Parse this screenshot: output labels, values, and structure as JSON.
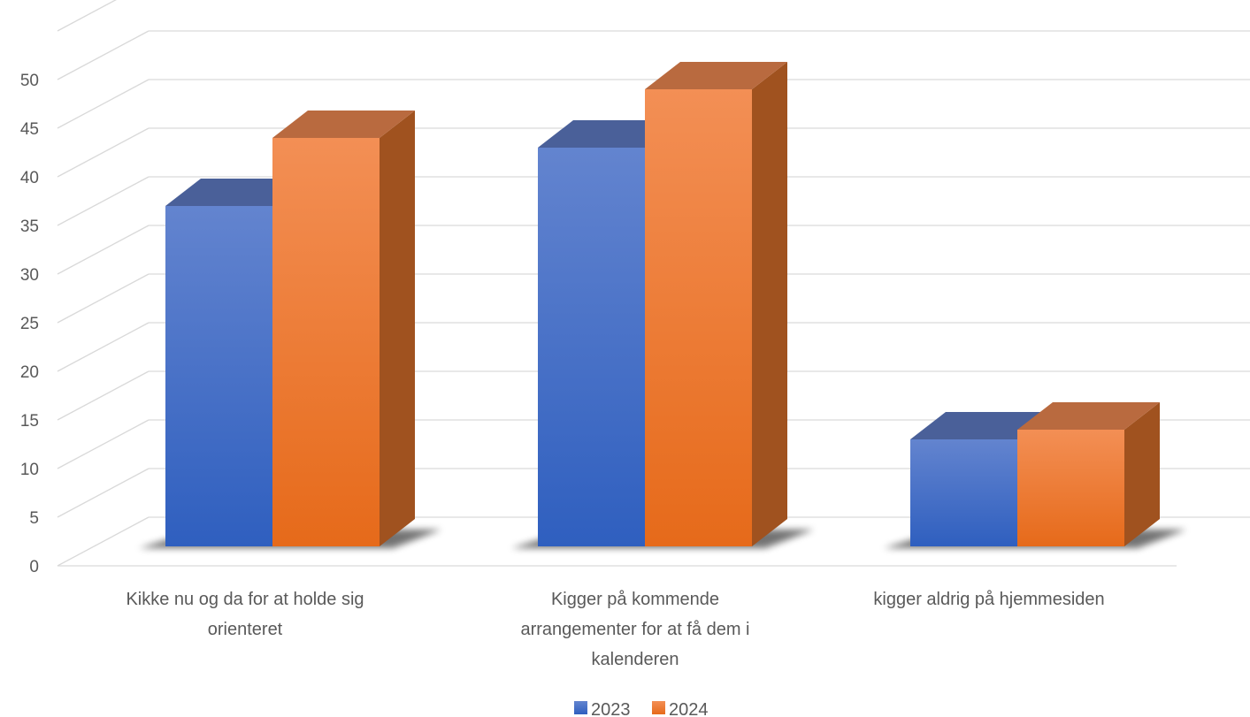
{
  "chart_data": {
    "type": "bar",
    "style": "3d-clustered-column",
    "categories": [
      [
        "Kikke nu og da for at holde sig",
        "orienteret"
      ],
      [
        "Kigger på kommende",
        "arrangementer for at få dem i",
        "kalenderen"
      ],
      [
        "kigger aldrig på hjemmesiden"
      ]
    ],
    "series": [
      {
        "name": "2023",
        "values": [
          35,
          41,
          11
        ],
        "colors": {
          "front_top": "#6384CF",
          "front_bottom": "#2F5FBF",
          "top": "#4A6099",
          "side": "#2F4F8F"
        }
      },
      {
        "name": "2024",
        "values": [
          42,
          47,
          12
        ],
        "colors": {
          "front_top": "#F38F55",
          "front_bottom": "#E66A1A",
          "top": "#B96A3F",
          "side": "#A0521F"
        }
      }
    ],
    "yticks": [
      0,
      5,
      10,
      15,
      20,
      25,
      30,
      35,
      40,
      45,
      50
    ],
    "ylim": [
      0,
      55
    ],
    "grid": true,
    "legend_position": "bottom",
    "gridline_color": "#D9D9D9",
    "text_color": "#595959"
  }
}
